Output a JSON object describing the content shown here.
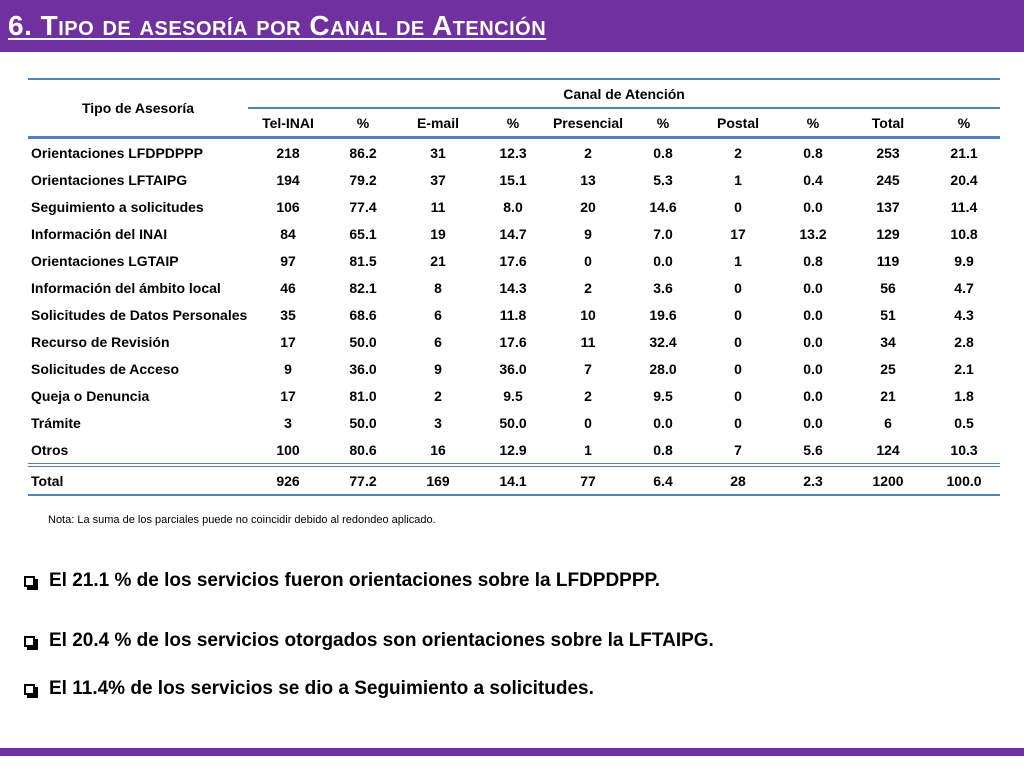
{
  "header": {
    "title": "6. Tipo de asesoría por Canal de Atención"
  },
  "colors": {
    "accent": "#7030a0",
    "table_rule": "#4f81bd"
  },
  "table": {
    "row_header": "Tipo de Asesoría",
    "group_header": "Canal de Atención",
    "columns": [
      "Tel-INAI",
      "%",
      "E-mail",
      "%",
      "Presencial",
      "%",
      "Postal",
      "%",
      "Total",
      "%"
    ],
    "rows": [
      {
        "label": "Orientaciones LFDPDPPP",
        "values": [
          "218",
          "86.2",
          "31",
          "12.3",
          "2",
          "0.8",
          "2",
          "0.8",
          "253",
          "21.1"
        ]
      },
      {
        "label": "Orientaciones LFTAIPG",
        "values": [
          "194",
          "79.2",
          "37",
          "15.1",
          "13",
          "5.3",
          "1",
          "0.4",
          "245",
          "20.4"
        ]
      },
      {
        "label": "Seguimiento a solicitudes",
        "values": [
          "106",
          "77.4",
          "11",
          "8.0",
          "20",
          "14.6",
          "0",
          "0.0",
          "137",
          "11.4"
        ]
      },
      {
        "label": "Información del INAI",
        "values": [
          "84",
          "65.1",
          "19",
          "14.7",
          "9",
          "7.0",
          "17",
          "13.2",
          "129",
          "10.8"
        ]
      },
      {
        "label": "Orientaciones LGTAIP",
        "values": [
          "97",
          "81.5",
          "21",
          "17.6",
          "0",
          "0.0",
          "1",
          "0.8",
          "119",
          "9.9"
        ]
      },
      {
        "label": "Información del ámbito local",
        "values": [
          "46",
          "82.1",
          "8",
          "14.3",
          "2",
          "3.6",
          "0",
          "0.0",
          "56",
          "4.7"
        ]
      },
      {
        "label": "Solicitudes de Datos Personales",
        "values": [
          "35",
          "68.6",
          "6",
          "11.8",
          "10",
          "19.6",
          "0",
          "0.0",
          "51",
          "4.3"
        ]
      },
      {
        "label": "Recurso de Revisión",
        "values": [
          "17",
          "50.0",
          "6",
          "17.6",
          "11",
          "32.4",
          "0",
          "0.0",
          "34",
          "2.8"
        ]
      },
      {
        "label": "Solicitudes de Acceso",
        "values": [
          "9",
          "36.0",
          "9",
          "36.0",
          "7",
          "28.0",
          "0",
          "0.0",
          "25",
          "2.1"
        ]
      },
      {
        "label": "Queja o Denuncia",
        "values": [
          "17",
          "81.0",
          "2",
          "9.5",
          "2",
          "9.5",
          "0",
          "0.0",
          "21",
          "1.8"
        ]
      },
      {
        "label": "Trámite",
        "values": [
          "3",
          "50.0",
          "3",
          "50.0",
          "0",
          "0.0",
          "0",
          "0.0",
          "6",
          "0.5"
        ]
      },
      {
        "label": "Otros",
        "values": [
          "100",
          "80.6",
          "16",
          "12.9",
          "1",
          "0.8",
          "7",
          "5.6",
          "124",
          "10.3"
        ]
      }
    ],
    "total": {
      "label": "Total",
      "values": [
        "926",
        "77.2",
        "169",
        "14.1",
        "77",
        "6.4",
        "28",
        "2.3",
        "1200",
        "100.0"
      ]
    }
  },
  "note": "Nota: La suma de los parciales puede no coincidir debido al redondeo aplicado.",
  "bullets": [
    "El 21.1 % de los servicios fueron orientaciones sobre la LFDPDPPP.",
    "El 20.4 % de los servicios otorgados son orientaciones sobre la LFTAIPG.",
    "El 11.4% de los servicios se dio a Seguimiento a solicitudes."
  ]
}
